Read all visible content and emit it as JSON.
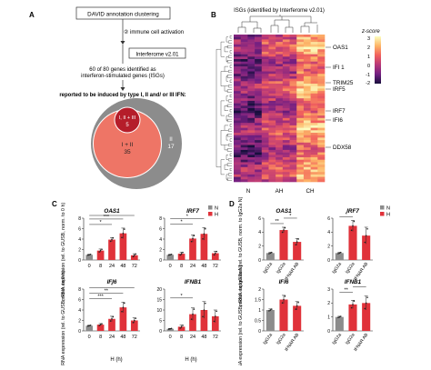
{
  "panel_letters": {
    "a": "A",
    "b": "B",
    "c": "C",
    "d": "D"
  },
  "panelA": {
    "step1": "DAVID annotation clustering",
    "step2": "② immune cell activation",
    "step3": "Interferome v2.01",
    "step4_line1": "60 of 80 genes identified as",
    "step4_line2": "interferon-stimulated genes (ISGs)",
    "step5": "reported to be induced by type I, II and/ or III IFN:",
    "venn": {
      "outer_label": "II",
      "outer_value": "17",
      "middle_label": "I + II",
      "middle_value": "35",
      "inner_label": "I, II + III",
      "inner_value": "5",
      "colors": {
        "outer": "#8c8c8c",
        "middle": "#ee7566",
        "inner": "#b51d2a"
      }
    }
  },
  "panelB": {
    "title": "ISGs (identified by Interferome v2.01)",
    "groups": [
      "N",
      "AH",
      "CH"
    ],
    "genes": [
      "OAS1",
      "IFI 1",
      "TRIM25",
      "IRF5",
      "IRF7",
      "IFI6",
      "DDX58"
    ],
    "colorbar": {
      "title": "z-score",
      "ticks": [
        "3",
        "2",
        "1",
        "0",
        "-1",
        "-2"
      ]
    }
  },
  "panelC": {
    "legend": {
      "n": "N",
      "h": "H"
    },
    "ylabel": "mRNA expression (rel. to GUSB, norm. to 0 h)",
    "xlabel": "H (h)",
    "xticks": [
      "0",
      "8",
      "24",
      "48",
      "72"
    ]
  },
  "panelD": {
    "legend": {
      "n": "N",
      "h": "H"
    },
    "ylabel": "mRNA expression (rel. to GUSB, norm. to IgG2a N)",
    "xticks": [
      "IgG2a",
      "IgG2a",
      "IFNAR AB"
    ]
  },
  "chart_data": [
    {
      "type": "bar",
      "title": "OAS1",
      "panel": "C",
      "categories": [
        "0",
        "8",
        "24",
        "48",
        "72"
      ],
      "yticks": [
        "0",
        "2",
        "4",
        "6",
        "8"
      ],
      "ylim": [
        0,
        8
      ],
      "values": [
        1.0,
        1.8,
        3.9,
        5.1,
        0.9
      ],
      "errors": [
        0.1,
        0.3,
        0.4,
        1.0,
        0.3
      ],
      "colors": [
        "#8c8c8c",
        "#e0323a",
        "#e0323a",
        "#e0323a",
        "#e0323a"
      ],
      "sig": [
        "*",
        "***",
        "*"
      ]
    },
    {
      "type": "bar",
      "title": "IRF7",
      "panel": "C",
      "categories": [
        "0",
        "8",
        "24",
        "48",
        "72"
      ],
      "yticks": [
        "0",
        "2",
        "4",
        "6",
        "8"
      ],
      "ylim": [
        0,
        8
      ],
      "values": [
        1.0,
        1.2,
        4.1,
        5.0,
        1.3
      ],
      "errors": [
        0.1,
        0.3,
        0.7,
        1.2,
        0.4
      ],
      "colors": [
        "#8c8c8c",
        "#e0323a",
        "#e0323a",
        "#e0323a",
        "#e0323a"
      ],
      "sig": [
        "*",
        "*"
      ]
    },
    {
      "type": "bar",
      "title": "IFI6",
      "panel": "C",
      "categories": [
        "0",
        "8",
        "24",
        "48",
        "72"
      ],
      "yticks": [
        "0",
        "2",
        "4",
        "6",
        "8"
      ],
      "ylim": [
        0,
        8
      ],
      "values": [
        1.0,
        1.2,
        2.3,
        4.5,
        2.0
      ],
      "errors": [
        0.1,
        0.2,
        0.5,
        1.0,
        0.5
      ],
      "colors": [
        "#8c8c8c",
        "#e0323a",
        "#e0323a",
        "#e0323a",
        "#e0323a"
      ],
      "sig": [
        "***",
        "**",
        "*"
      ]
    },
    {
      "type": "bar",
      "title": "IFNB1",
      "panel": "C",
      "categories": [
        "0",
        "8",
        "24",
        "48",
        "72"
      ],
      "yticks": [
        "0",
        "5",
        "10",
        "15",
        "20"
      ],
      "ylim": [
        0,
        20
      ],
      "values": [
        1.0,
        2.0,
        8.0,
        10.0,
        7.0
      ],
      "errors": [
        0.2,
        0.8,
        3.0,
        4.0,
        3.0
      ],
      "colors": [
        "#8c8c8c",
        "#e0323a",
        "#e0323a",
        "#e0323a",
        "#e0323a"
      ],
      "sig": [
        "*"
      ]
    },
    {
      "type": "bar",
      "title": "OAS1",
      "panel": "D",
      "categories": [
        "IgG2a",
        "IgG2a",
        "IFNAR AB"
      ],
      "yticks": [
        "0",
        "2",
        "4",
        "6"
      ],
      "ylim": [
        0,
        6
      ],
      "values": [
        1.0,
        4.3,
        2.6
      ],
      "errors": [
        0.1,
        0.4,
        0.5
      ],
      "colors": [
        "#8c8c8c",
        "#e0323a",
        "#e0323a"
      ],
      "sig": [
        "**",
        "*"
      ]
    },
    {
      "type": "bar",
      "title": "IRF7",
      "panel": "D",
      "categories": [
        "IgG2a",
        "IgG2a",
        "IFNAR AB"
      ],
      "yticks": [
        "0",
        "2",
        "4",
        "6"
      ],
      "ylim": [
        0,
        6
      ],
      "values": [
        1.0,
        4.9,
        3.5
      ],
      "errors": [
        0.1,
        0.8,
        1.2
      ],
      "colors": [
        "#8c8c8c",
        "#e0323a",
        "#e0323a"
      ],
      "sig": [
        "*"
      ]
    },
    {
      "type": "bar",
      "title": "IFI6",
      "panel": "D",
      "categories": [
        "IgG2a",
        "IgG2a",
        "IFNAR AB"
      ],
      "yticks": [
        "0",
        "0.5",
        "1",
        "1.5",
        "2"
      ],
      "ylim": [
        0,
        2
      ],
      "values": [
        1.0,
        1.5,
        1.2
      ],
      "errors": [
        0.05,
        0.2,
        0.2
      ],
      "colors": [
        "#8c8c8c",
        "#e0323a",
        "#e0323a"
      ],
      "sig": []
    },
    {
      "type": "bar",
      "title": "IFNB1",
      "panel": "D",
      "categories": [
        "IgG2a",
        "IgG2a",
        "IFNAR AB"
      ],
      "yticks": [
        "0",
        "1",
        "2",
        "3"
      ],
      "ylim": [
        0,
        3
      ],
      "values": [
        1.0,
        1.9,
        2.0
      ],
      "errors": [
        0.05,
        0.3,
        0.5
      ],
      "colors": [
        "#8c8c8c",
        "#e0323a",
        "#e0323a"
      ],
      "sig": [
        "**",
        "*"
      ]
    }
  ]
}
